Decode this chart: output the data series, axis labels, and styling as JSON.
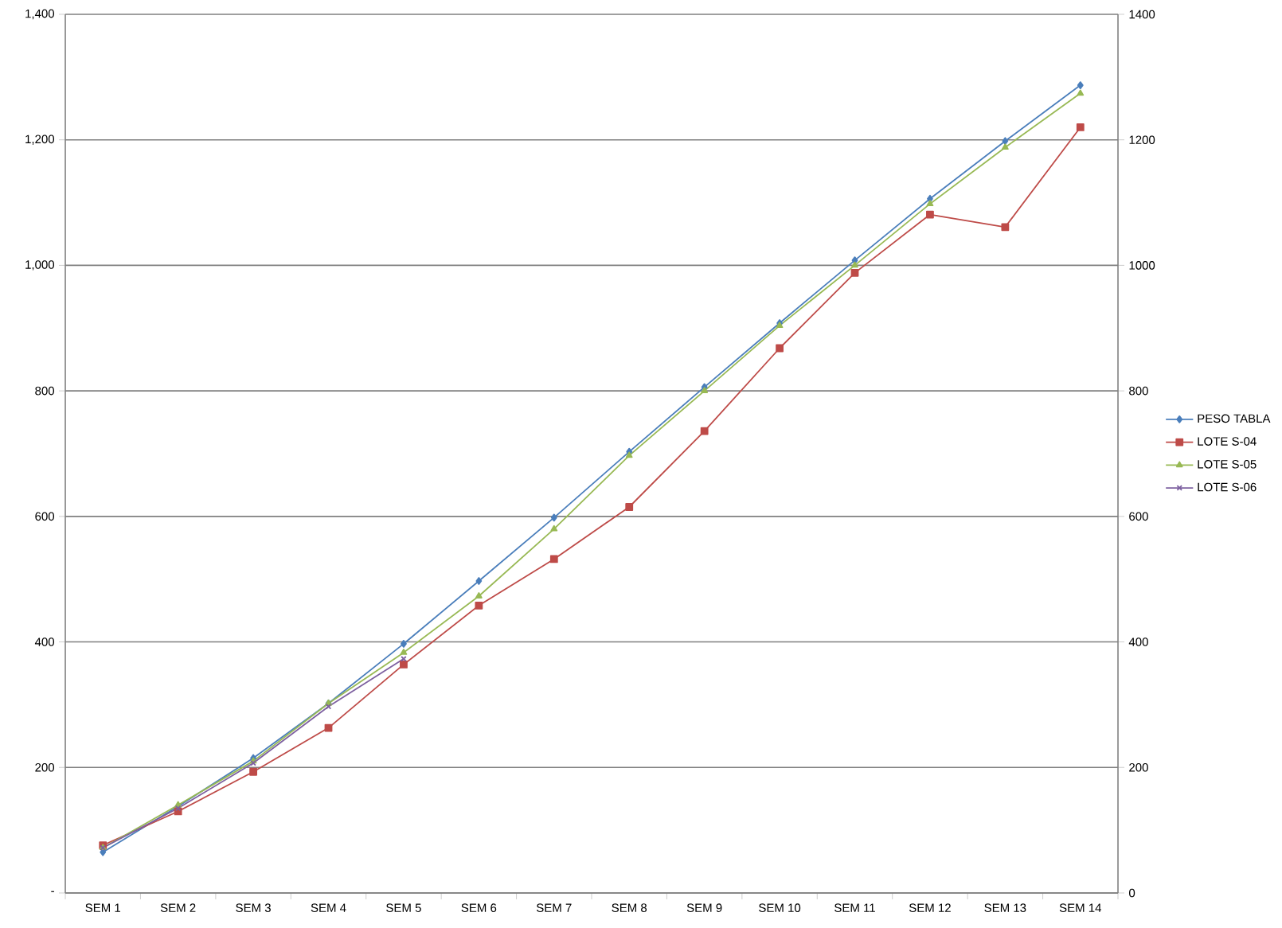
{
  "chart_data": {
    "type": "line",
    "categories": [
      "SEM 1",
      "SEM 2",
      "SEM 3",
      "SEM 4",
      "SEM 5",
      "SEM 6",
      "SEM 7",
      "SEM 8",
      "SEM 9",
      "SEM 10",
      "SEM 11",
      "SEM 12",
      "SEM 13",
      "SEM 14"
    ],
    "series": [
      {
        "name": "PESO TABLA",
        "color": "#4a7ebb",
        "marker": "diamond",
        "values": [
          65,
          138,
          215,
          302,
          397,
          497,
          598,
          703,
          806,
          908,
          1008,
          1106,
          1198,
          1287
        ]
      },
      {
        "name": "LOTE S-04",
        "color": "#be4b48",
        "marker": "square",
        "values": [
          76,
          130,
          193,
          263,
          364,
          458,
          532,
          615,
          736,
          868,
          988,
          1081,
          1061,
          1220
        ]
      },
      {
        "name": "LOTE S-05",
        "color": "#98b954",
        "marker": "triangle",
        "values": [
          72,
          140,
          210,
          302,
          383,
          473,
          580,
          697,
          800,
          904,
          1000,
          1098,
          1188,
          1274
        ]
      },
      {
        "name": "LOTE S-06",
        "color": "#7d60a0",
        "marker": "cross",
        "values": [
          72,
          135,
          207,
          297,
          373,
          null,
          null,
          null,
          null,
          null,
          null,
          null,
          null,
          null
        ]
      }
    ],
    "ylim": [
      0,
      1400
    ],
    "yticks": [
      {
        "value": 0,
        "label": "-"
      },
      {
        "value": 200,
        "label": "200"
      },
      {
        "value": 400,
        "label": "400"
      },
      {
        "value": 600,
        "label": "600"
      },
      {
        "value": 800,
        "label": "800"
      },
      {
        "value": 1000,
        "label": "1,000"
      },
      {
        "value": 1200,
        "label": "1,200"
      },
      {
        "value": 1400,
        "label": "1,400"
      }
    ],
    "y2lim": [
      0,
      1400
    ],
    "y2ticks": [
      0,
      200,
      400,
      600,
      800,
      1000,
      1200,
      1400
    ],
    "grid": "y",
    "legend": "right",
    "line_style": "solid"
  }
}
